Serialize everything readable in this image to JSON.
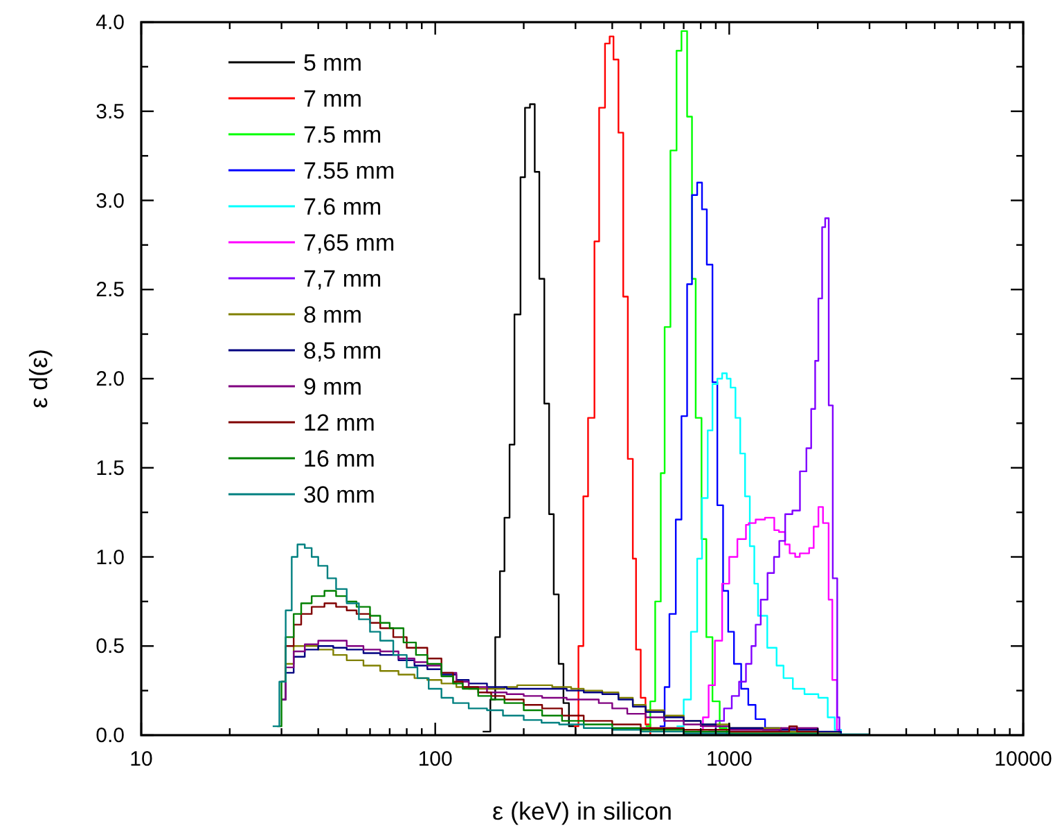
{
  "chart_data": {
    "type": "step",
    "xlabel": "ε (keV) in silicon",
    "ylabel": "ε d(ε)",
    "log": "x",
    "xlim": [
      10,
      10000
    ],
    "ylim": [
      0,
      4.0
    ],
    "xticks": [
      10,
      {
        "value": 20,
        "label": null
      },
      {
        "value": 30,
        "label": null
      },
      {
        "value": 40,
        "label": null
      },
      {
        "value": 50,
        "label": null
      },
      {
        "value": 60,
        "label": null
      },
      {
        "value": 70,
        "label": null
      },
      {
        "value": 80,
        "label": null
      },
      {
        "value": 90,
        "label": null
      },
      100,
      {
        "value": 200,
        "label": null
      },
      {
        "value": 300,
        "label": null
      },
      {
        "value": 400,
        "label": null
      },
      {
        "value": 500,
        "label": null
      },
      {
        "value": 600,
        "label": null
      },
      {
        "value": 700,
        "label": null
      },
      {
        "value": 800,
        "label": null
      },
      {
        "value": 900,
        "label": null
      },
      1000,
      {
        "value": 2000,
        "label": null
      },
      {
        "value": 3000,
        "label": null
      },
      {
        "value": 4000,
        "label": null
      },
      {
        "value": 5000,
        "label": null
      },
      {
        "value": 6000,
        "label": null
      },
      {
        "value": 7000,
        "label": null
      },
      {
        "value": 8000,
        "label": null
      },
      {
        "value": 9000,
        "label": null
      },
      10000
    ],
    "yticks": [
      {
        "value": 0,
        "label": "0.0"
      },
      {
        "value": 0.25,
        "label": null
      },
      {
        "value": 0.5,
        "label": "0.5"
      },
      {
        "value": 0.75,
        "label": null
      },
      {
        "value": 1,
        "label": "1.0"
      },
      {
        "value": 1.25,
        "label": null
      },
      {
        "value": 1.5,
        "label": "1.5"
      },
      {
        "value": 1.75,
        "label": null
      },
      {
        "value": 2,
        "label": "2.0"
      },
      {
        "value": 2.25,
        "label": null
      },
      {
        "value": 2.5,
        "label": "2.5"
      },
      {
        "value": 2.75,
        "label": null
      },
      {
        "value": 3,
        "label": "3.0"
      },
      {
        "value": 3.25,
        "label": null
      },
      {
        "value": 3.5,
        "label": "3.5"
      },
      {
        "value": 3.75,
        "label": null
      },
      {
        "value": 4,
        "label": "4.0"
      }
    ],
    "grid": false,
    "legend": "top left",
    "line_style": "solid",
    "series": [
      {
        "name": "5 mm",
        "color": "#000000",
        "x": [
          145,
          154,
          160,
          166,
          172,
          179,
          186,
          195,
          202,
          210,
          218,
          226,
          235,
          244,
          253,
          263,
          273,
          285,
          300
        ],
        "values": [
          0.02,
          0.2,
          0.55,
          0.92,
          1.22,
          1.63,
          2.36,
          3.13,
          3.52,
          3.54,
          3.16,
          2.56,
          1.86,
          1.24,
          0.79,
          0.4,
          0.18,
          0.05,
          0
        ]
      },
      {
        "name": "7 mm",
        "color": "#ff0000",
        "x": [
          296,
          307,
          319,
          331,
          348,
          361,
          378,
          392,
          404,
          420,
          436,
          452,
          470,
          482,
          500,
          519,
          539
        ],
        "values": [
          0.05,
          0.5,
          1.34,
          1.78,
          2.77,
          3.52,
          3.88,
          3.92,
          3.79,
          3.38,
          2.46,
          1.55,
          0.99,
          0.48,
          0.21,
          0.06,
          0
        ]
      },
      {
        "name": "7.5 mm",
        "color": "#00ff00",
        "x": [
          520,
          539,
          560,
          585,
          603,
          631,
          662,
          688,
          719,
          747,
          769,
          805,
          836,
          877,
          928,
          981
        ],
        "values": [
          0.05,
          0.19,
          0.75,
          1.47,
          2.29,
          3.28,
          3.84,
          3.95,
          3.47,
          2.56,
          1.78,
          1.1,
          0.55,
          0.19,
          0.04,
          0
        ]
      },
      {
        "name": "7.55 mm",
        "color": "#0000ff",
        "x": [
          580,
          603,
          626,
          658,
          688,
          719,
          747,
          778,
          808,
          839,
          877,
          911,
          953,
          992,
          1038,
          1098,
          1161,
          1229,
          1324,
          1481
        ],
        "values": [
          0.05,
          0.27,
          0.68,
          1.21,
          1.79,
          2.53,
          3.03,
          3.1,
          2.95,
          2.64,
          1.98,
          1.29,
          0.81,
          0.58,
          0.4,
          0.26,
          0.17,
          0.09,
          0.04,
          0.02
        ]
      },
      {
        "name": "7.6 mm",
        "color": "#00ffff",
        "x": [
          662,
          700,
          741,
          778,
          808,
          845,
          877,
          911,
          946,
          981,
          1011,
          1050,
          1090,
          1132,
          1175,
          1217,
          1253,
          1347,
          1449,
          1530,
          1646,
          1803,
          2010,
          2163,
          2285,
          2400
        ],
        "values": [
          0.05,
          0.2,
          0.58,
          0.99,
          1.33,
          1.71,
          1.97,
          2.0,
          2.03,
          2.0,
          1.95,
          1.78,
          1.58,
          1.34,
          1.06,
          0.85,
          0.67,
          0.49,
          0.39,
          0.32,
          0.26,
          0.23,
          0.21,
          0.1,
          0.03,
          0
        ]
      },
      {
        "name": "7,65 mm",
        "color": "#ff00ff",
        "x": [
          780,
          814,
          851,
          894,
          946,
          1000,
          1066,
          1140,
          1165,
          1230,
          1323,
          1423,
          1476,
          1548,
          1605,
          1676,
          1738,
          1870,
          1938,
          2011,
          2084,
          2178,
          2242,
          2325,
          2368
        ],
        "values": [
          0.03,
          0.1,
          0.28,
          0.53,
          0.85,
          1.0,
          1.1,
          1.18,
          1.19,
          1.21,
          1.22,
          1.15,
          1.14,
          1.07,
          1.02,
          1.0,
          1.02,
          1.05,
          1.17,
          1.28,
          1.19,
          0.76,
          0.31,
          0.03,
          0
        ]
      },
      {
        "name": "7,7 mm",
        "color": "#8000ff",
        "x": [
          850,
          900,
          960,
          1020,
          1080,
          1140,
          1190,
          1230,
          1280,
          1350,
          1420,
          1480,
          1550,
          1640,
          1740,
          1830,
          1900,
          1960,
          2010,
          2070,
          2120,
          2180,
          2250,
          2330,
          2370
        ],
        "values": [
          0.03,
          0.08,
          0.15,
          0.22,
          0.3,
          0.4,
          0.5,
          0.62,
          0.76,
          0.91,
          1.0,
          1.09,
          1.24,
          1.26,
          1.48,
          1.61,
          1.83,
          2.1,
          2.45,
          2.85,
          2.9,
          1.85,
          0.88,
          0.1,
          0
        ]
      },
      {
        "name": "8 mm",
        "color": "#808000",
        "x": [
          30,
          31,
          33,
          36,
          40,
          45,
          50,
          57,
          65,
          75,
          85,
          94,
          105,
          118,
          130,
          150,
          172,
          190,
          210,
          250,
          290,
          320,
          370,
          420,
          470,
          520,
          600,
          700,
          800,
          1000,
          1500,
          2000,
          2400
        ],
        "values": [
          0.2,
          0.4,
          0.5,
          0.5,
          0.48,
          0.45,
          0.42,
          0.39,
          0.36,
          0.34,
          0.32,
          0.31,
          0.29,
          0.27,
          0.26,
          0.26,
          0.27,
          0.28,
          0.28,
          0.27,
          0.26,
          0.25,
          0.24,
          0.21,
          0.17,
          0.14,
          0.11,
          0.08,
          0.06,
          0.04,
          0.02,
          0.01,
          0
        ]
      },
      {
        "name": "8,5 mm",
        "color": "#000080",
        "x": [
          30,
          31,
          33,
          36,
          40,
          45,
          50,
          57,
          65,
          75,
          85,
          94,
          105,
          118,
          130,
          150,
          175,
          200,
          231,
          280,
          320,
          370,
          420,
          470,
          520,
          600,
          700,
          800,
          900,
          1000,
          1300,
          2000,
          2400
        ],
        "values": [
          0.2,
          0.35,
          0.44,
          0.48,
          0.5,
          0.49,
          0.48,
          0.46,
          0.45,
          0.42,
          0.39,
          0.37,
          0.34,
          0.31,
          0.29,
          0.27,
          0.26,
          0.26,
          0.26,
          0.25,
          0.24,
          0.23,
          0.2,
          0.16,
          0.13,
          0.1,
          0.08,
          0.06,
          0.05,
          0.04,
          0.03,
          0.02,
          0
        ]
      },
      {
        "name": "9 mm",
        "color": "#800080",
        "x": [
          30,
          31,
          33,
          36,
          40,
          44,
          50,
          57,
          65,
          75,
          85,
          94,
          105,
          118,
          130,
          150,
          175,
          200,
          231,
          280,
          320,
          360,
          400,
          450,
          520,
          600,
          700,
          800,
          1000,
          1500,
          2000
        ],
        "values": [
          0.2,
          0.38,
          0.47,
          0.51,
          0.53,
          0.53,
          0.5,
          0.48,
          0.47,
          0.43,
          0.41,
          0.39,
          0.35,
          0.3,
          0.27,
          0.24,
          0.23,
          0.22,
          0.21,
          0.2,
          0.2,
          0.18,
          0.15,
          0.12,
          0.1,
          0.08,
          0.06,
          0.05,
          0.03,
          0.04,
          0
        ]
      },
      {
        "name": "12 mm",
        "color": "#800000",
        "x": [
          30,
          31,
          33,
          35,
          38,
          42,
          46,
          50,
          54,
          60,
          65,
          72,
          80,
          94,
          105,
          115,
          124,
          140,
          155,
          172,
          200,
          231,
          270,
          320,
          400,
          500,
          700,
          1000,
          1600,
          1700,
          2000
        ],
        "values": [
          0.3,
          0.5,
          0.62,
          0.68,
          0.72,
          0.74,
          0.72,
          0.7,
          0.68,
          0.63,
          0.6,
          0.55,
          0.49,
          0.43,
          0.35,
          0.3,
          0.27,
          0.24,
          0.22,
          0.2,
          0.17,
          0.15,
          0.11,
          0.08,
          0.06,
          0.04,
          0.03,
          0.02,
          0.05,
          0.02,
          0
        ]
      },
      {
        "name": "16 mm",
        "color": "#008000",
        "x": [
          29,
          30,
          31,
          33,
          35,
          38,
          42,
          46,
          50,
          54,
          60,
          65,
          70,
          78,
          86,
          94,
          105,
          115,
          124,
          140,
          155,
          172,
          200,
          231,
          270,
          320,
          400,
          500,
          700,
          1000,
          2000
        ],
        "values": [
          0.05,
          0.3,
          0.55,
          0.68,
          0.74,
          0.78,
          0.81,
          0.78,
          0.75,
          0.72,
          0.67,
          0.63,
          0.6,
          0.52,
          0.45,
          0.4,
          0.33,
          0.29,
          0.26,
          0.22,
          0.2,
          0.18,
          0.14,
          0.11,
          0.08,
          0.06,
          0.04,
          0.03,
          0.02,
          0.01,
          0
        ]
      },
      {
        "name": "30 mm",
        "color": "#008080",
        "x": [
          28,
          29.5,
          31,
          32.5,
          34,
          36,
          38,
          40,
          43,
          46,
          50,
          55,
          60,
          65,
          72,
          80,
          87,
          95,
          105,
          115,
          130,
          150,
          170,
          200,
          230,
          264,
          320,
          400,
          500,
          700,
          1000,
          3000
        ],
        "values": [
          0.05,
          0.3,
          0.7,
          1.0,
          1.07,
          1.05,
          1.0,
          0.95,
          0.88,
          0.82,
          0.74,
          0.65,
          0.58,
          0.53,
          0.45,
          0.38,
          0.32,
          0.26,
          0.21,
          0.18,
          0.15,
          0.14,
          0.11,
          0.085,
          0.07,
          0.06,
          0.04,
          0.03,
          0.02,
          0.01,
          0.005,
          0
        ]
      }
    ]
  }
}
